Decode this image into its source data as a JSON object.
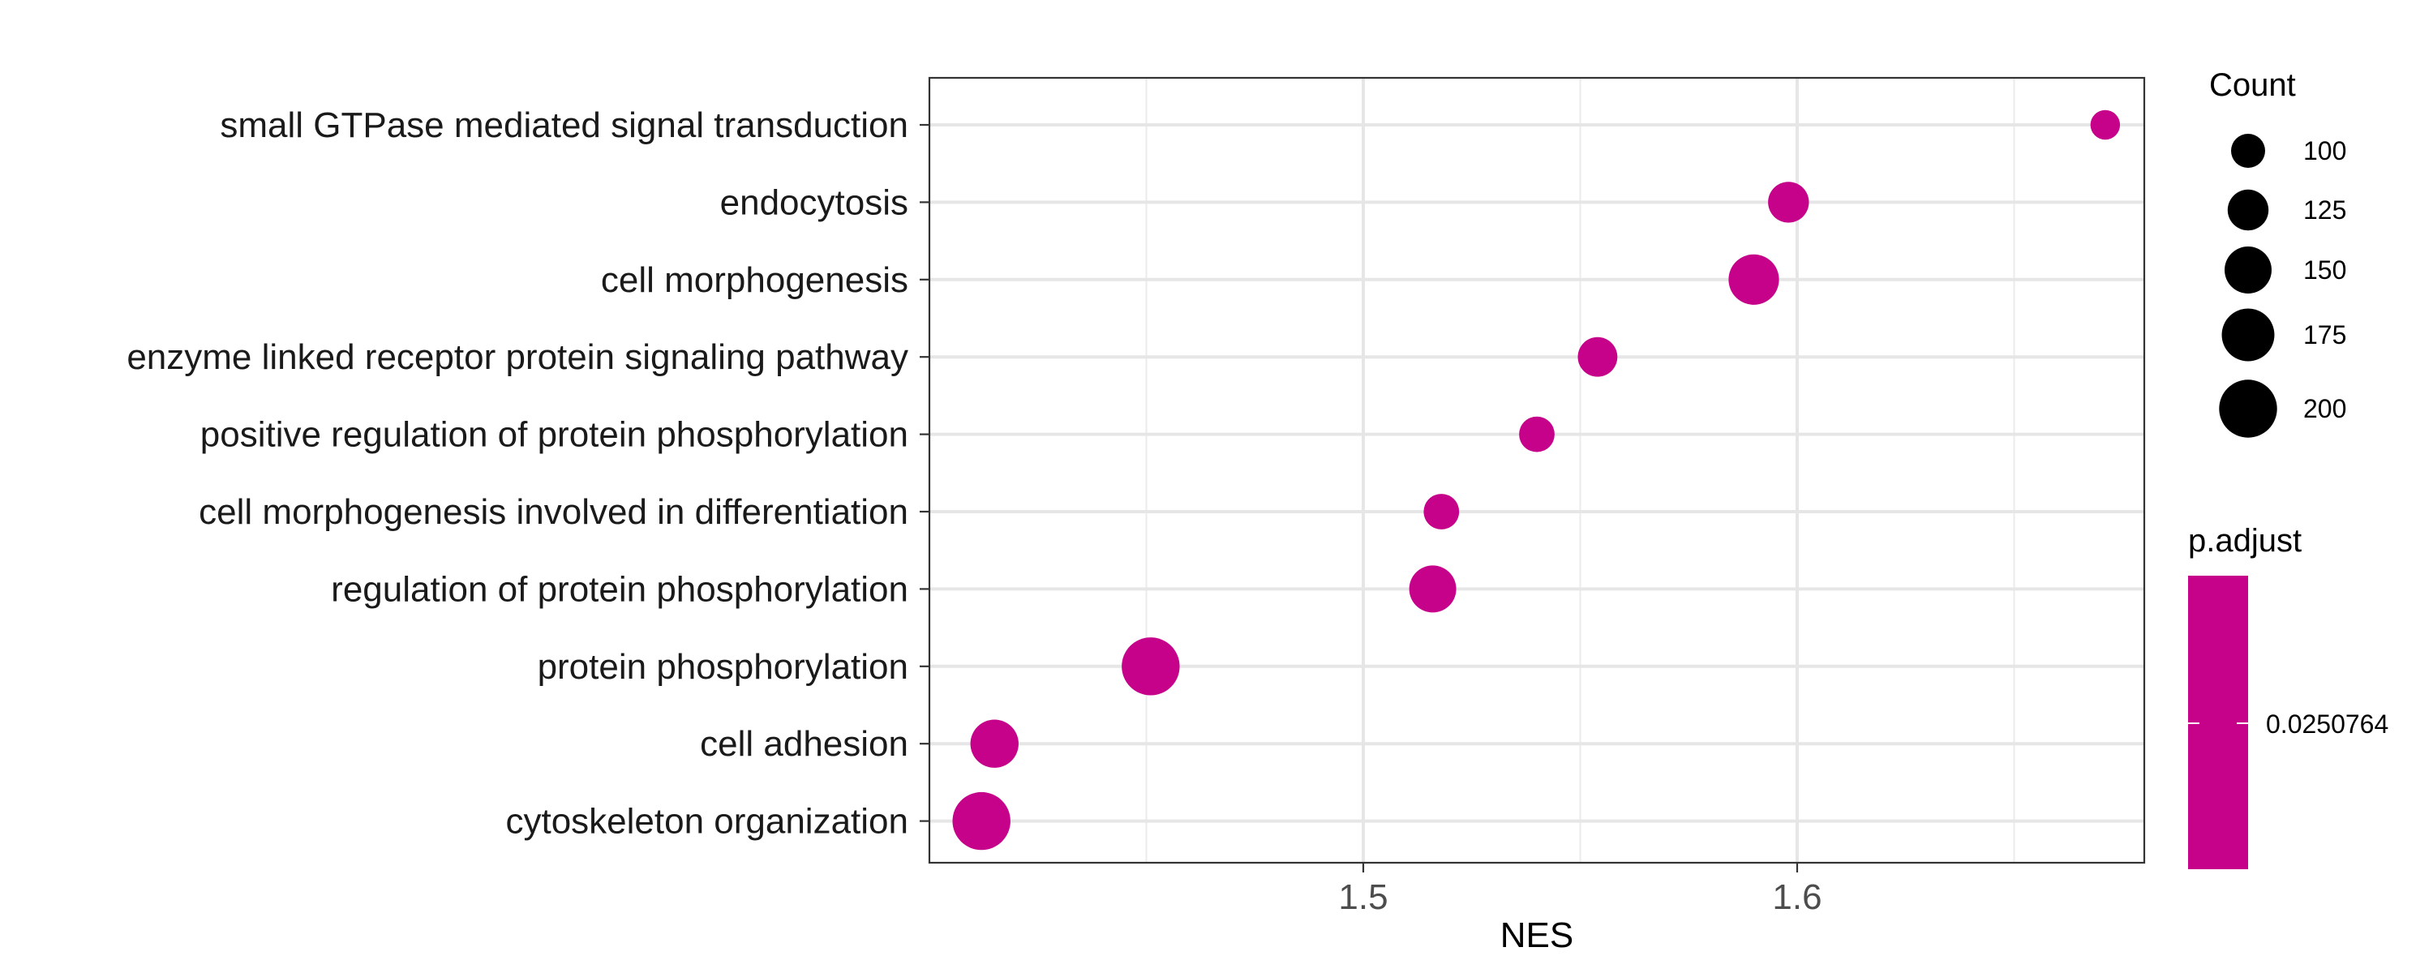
{
  "chart_data": {
    "type": "scatter",
    "xlabel": "NES",
    "ylabel": "",
    "xlim": [
      1.4,
      1.68
    ],
    "xticks": [
      1.5,
      1.6
    ],
    "xtick_labels": [
      "1.5",
      "1.6"
    ],
    "x_minor_gridlines": [
      1.45,
      1.55,
      1.65
    ],
    "grid": true,
    "categories": [
      "small GTPase mediated signal transduction",
      "endocytosis",
      "cell morphogenesis",
      "enzyme linked receptor protein signaling pathway",
      "positive regulation of protein phosphorylation",
      "cell morphogenesis involved in differentiation",
      "regulation of protein phosphorylation",
      "protein phosphorylation",
      "cell adhesion",
      "cytoskeleton organization"
    ],
    "series": [
      {
        "points": [
          {
            "category": "small GTPase mediated signal transduction",
            "x": 1.671,
            "count": 85,
            "p_adjust": 0.0250764
          },
          {
            "category": "endocytosis",
            "x": 1.598,
            "count": 125,
            "p_adjust": 0.0250764
          },
          {
            "category": "cell morphogenesis",
            "x": 1.59,
            "count": 165,
            "p_adjust": 0.0250764
          },
          {
            "category": "enzyme linked receptor protein signaling pathway",
            "x": 1.554,
            "count": 120,
            "p_adjust": 0.0250764
          },
          {
            "category": "positive regulation of protein phosphorylation",
            "x": 1.54,
            "count": 105,
            "p_adjust": 0.0250764
          },
          {
            "category": "cell morphogenesis involved in differentiation",
            "x": 1.518,
            "count": 105,
            "p_adjust": 0.0250764
          },
          {
            "category": "regulation of protein phosphorylation",
            "x": 1.516,
            "count": 150,
            "p_adjust": 0.0250764
          },
          {
            "category": "protein phosphorylation",
            "x": 1.451,
            "count": 200,
            "p_adjust": 0.0250764
          },
          {
            "category": "cell adhesion",
            "x": 1.415,
            "count": 155,
            "p_adjust": 0.0250764
          },
          {
            "category": "cytoskeleton organization",
            "x": 1.412,
            "count": 200,
            "p_adjust": 0.0250764
          }
        ]
      }
    ],
    "point_color": "#C6028A",
    "size_legend": {
      "title": "Count",
      "values": [
        100,
        125,
        150,
        175,
        200
      ],
      "labels": [
        "100",
        "125",
        "150",
        "175",
        "200"
      ],
      "placement": "right"
    },
    "color_legend": {
      "title": "p.adjust",
      "tick_value": 0.0250764,
      "tick_label": "0.0250764",
      "color": "#C6028A",
      "placement": "right"
    }
  }
}
